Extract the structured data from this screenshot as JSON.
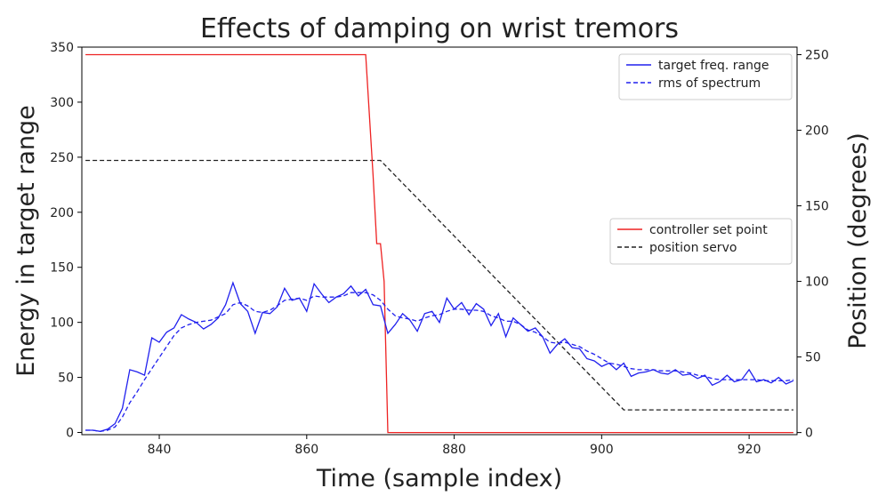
{
  "chart_data": {
    "type": "line",
    "title": "Effects of damping on wrist tremors",
    "xlabel": "Time (sample index)",
    "ylabel": "Energy in target range",
    "y2label": "Position (degrees)",
    "xlim": [
      829.5,
      926.5
    ],
    "ylim": [
      -2,
      350
    ],
    "y2lim": [
      -1.4,
      255
    ],
    "xticks": [
      840,
      860,
      880,
      900,
      920
    ],
    "yticks": [
      0,
      50,
      100,
      150,
      200,
      250,
      300,
      350
    ],
    "y2ticks": [
      0,
      50,
      100,
      150,
      200,
      250
    ],
    "grid": false,
    "legend_left_axis_position": "top-right",
    "legend_right_axis_position": "center-right",
    "colors": {
      "target": "#2020ee",
      "rms": "#2020ee",
      "setpoint": "#ee2222",
      "servo": "#222222"
    },
    "left_axis_series": [
      {
        "name": "target freq. range",
        "style": "solid",
        "x": [
          830,
          831,
          832,
          833,
          834,
          835,
          836,
          837,
          838,
          839,
          840,
          841,
          842,
          843,
          844,
          845,
          846,
          847,
          848,
          849,
          850,
          851,
          852,
          853,
          854,
          855,
          856,
          857,
          858,
          859,
          860,
          861,
          862,
          863,
          864,
          865,
          866,
          867,
          868,
          869,
          870,
          871,
          872,
          873,
          874,
          875,
          876,
          877,
          878,
          879,
          880,
          881,
          882,
          883,
          884,
          885,
          886,
          887,
          888,
          889,
          890,
          891,
          892,
          893,
          894,
          895,
          896,
          897,
          898,
          899,
          900,
          901,
          902,
          903,
          904,
          905,
          906,
          907,
          908,
          909,
          910,
          911,
          912,
          913,
          914,
          915,
          916,
          917,
          918,
          919,
          920,
          921,
          922,
          923,
          924,
          925,
          926
        ],
        "values": [
          2,
          2,
          1,
          3,
          8,
          22,
          57,
          55,
          52,
          86,
          82,
          91,
          95,
          107,
          103,
          100,
          94,
          98,
          104,
          116,
          136,
          117,
          110,
          90,
          109,
          108,
          114,
          131,
          120,
          122,
          110,
          135,
          126,
          118,
          123,
          126,
          133,
          124,
          130,
          116,
          115,
          90,
          98,
          108,
          102,
          92,
          108,
          110,
          100,
          122,
          112,
          118,
          107,
          117,
          112,
          97,
          108,
          87,
          104,
          98,
          92,
          95,
          87,
          72,
          80,
          85,
          77,
          76,
          67,
          65,
          60,
          63,
          57,
          63,
          51,
          54,
          55,
          57,
          54,
          53,
          57,
          52,
          53,
          49,
          52,
          43,
          46,
          52,
          46,
          48,
          57,
          46,
          48,
          45,
          50,
          44,
          47
        ],
        "values_note": "estimated readings"
      },
      {
        "name": "rms of spectrum",
        "style": "dashed",
        "x": [
          830,
          831,
          832,
          833,
          834,
          835,
          836,
          837,
          838,
          839,
          840,
          841,
          842,
          843,
          844,
          845,
          846,
          847,
          848,
          849,
          850,
          851,
          852,
          853,
          854,
          855,
          856,
          857,
          858,
          859,
          860,
          861,
          862,
          863,
          864,
          865,
          866,
          867,
          868,
          869,
          870,
          871,
          872,
          873,
          874,
          875,
          876,
          877,
          878,
          879,
          880,
          881,
          882,
          883,
          884,
          885,
          886,
          887,
          888,
          889,
          890,
          891,
          892,
          893,
          894,
          895,
          896,
          897,
          898,
          899,
          900,
          901,
          902,
          903,
          904,
          905,
          906,
          907,
          908,
          909,
          910,
          911,
          912,
          913,
          914,
          915,
          916,
          917,
          918,
          919,
          920,
          921,
          922,
          923,
          924,
          925,
          926
        ],
        "values": [
          2,
          2,
          1,
          2,
          5,
          14,
          27,
          37,
          48,
          58,
          68,
          78,
          88,
          95,
          98,
          100,
          101,
          102,
          105,
          108,
          116,
          118,
          115,
          110,
          109,
          111,
          115,
          120,
          121,
          122,
          120,
          124,
          123,
          123,
          123,
          124,
          127,
          127,
          127,
          125,
          120,
          112,
          106,
          104,
          103,
          101,
          104,
          106,
          107,
          110,
          112,
          112,
          111,
          111,
          110,
          106,
          104,
          101,
          101,
          98,
          93,
          91,
          87,
          82,
          81,
          82,
          80,
          78,
          74,
          71,
          67,
          63,
          62,
          60,
          58,
          57,
          57,
          57,
          56,
          56,
          56,
          55,
          54,
          52,
          51,
          49,
          48,
          48,
          48,
          48,
          48,
          48,
          47,
          47,
          47,
          47,
          48
        ]
      }
    ],
    "right_axis_series": [
      {
        "name": "controller set point",
        "style": "solid",
        "x": [
          830,
          868,
          869,
          869.5,
          870,
          870.5,
          871,
          926
        ],
        "values": [
          250,
          250,
          170,
          125,
          125,
          100,
          0,
          0
        ]
      },
      {
        "name": "position servo",
        "style": "dashed",
        "x": [
          830,
          870,
          903,
          926
        ],
        "values": [
          180,
          180,
          15,
          15
        ]
      }
    ]
  }
}
